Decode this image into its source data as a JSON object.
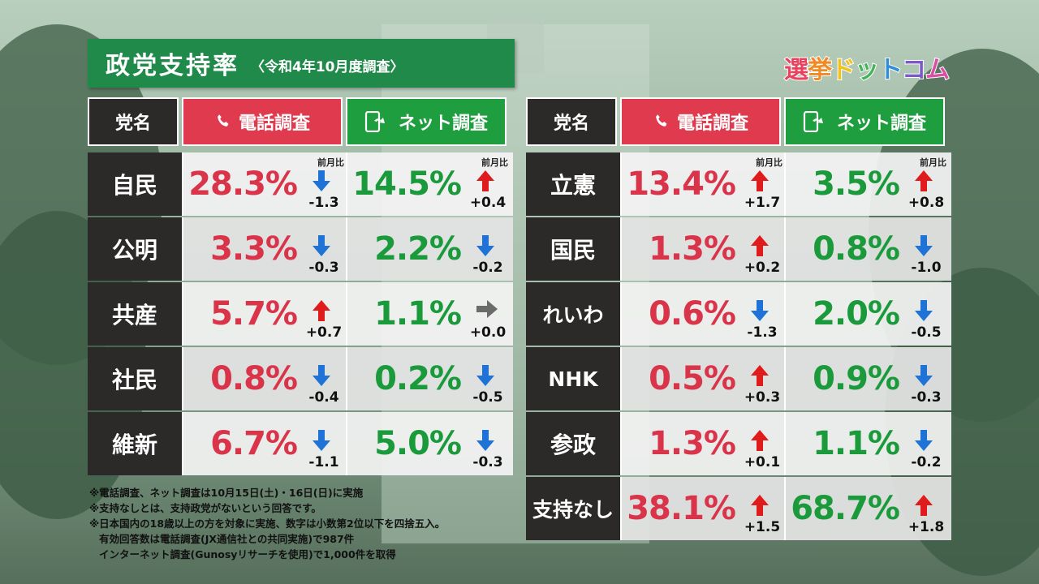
{
  "title": {
    "main": "政党支持率",
    "sub": "〈令和4年10月度調査〉"
  },
  "logo": {
    "text": "選挙ドットコム",
    "colors": [
      "#e9425f",
      "#f08a24",
      "#f2c11c",
      "#44b35a",
      "#2e8fd8",
      "#7b59c9",
      "#d94fa6"
    ]
  },
  "headers": {
    "party": "党名",
    "phone": "電話調査",
    "net": "ネット調査",
    "phone_icon": "phone-icon",
    "net_icon": "smartphone-icon"
  },
  "prev_label": "前月比",
  "colors": {
    "phone": "#e03a4e",
    "net": "#1f9e3f",
    "party_bg": "#2c2a29",
    "up": "#e01b1b",
    "down": "#1f72d6",
    "flat": "#6b6b6b"
  },
  "left_rows": [
    {
      "party": "自民",
      "phone": {
        "value": "28.3%",
        "dir": "down",
        "delta": "-1.3"
      },
      "net": {
        "value": "14.5%",
        "dir": "up",
        "delta": "+0.4"
      }
    },
    {
      "party": "公明",
      "phone": {
        "value": "3.3%",
        "dir": "down",
        "delta": "-0.3"
      },
      "net": {
        "value": "2.2%",
        "dir": "down",
        "delta": "-0.2"
      }
    },
    {
      "party": "共産",
      "phone": {
        "value": "5.7%",
        "dir": "up",
        "delta": "+0.7"
      },
      "net": {
        "value": "1.1%",
        "dir": "flat",
        "delta": "+0.0"
      }
    },
    {
      "party": "社民",
      "phone": {
        "value": "0.8%",
        "dir": "down",
        "delta": "-0.4"
      },
      "net": {
        "value": "0.2%",
        "dir": "down",
        "delta": "-0.5"
      }
    },
    {
      "party": "維新",
      "phone": {
        "value": "6.7%",
        "dir": "down",
        "delta": "-1.1"
      },
      "net": {
        "value": "5.0%",
        "dir": "down",
        "delta": "-0.3"
      }
    }
  ],
  "right_rows": [
    {
      "party": "立憲",
      "phone": {
        "value": "13.4%",
        "dir": "up",
        "delta": "+1.7"
      },
      "net": {
        "value": "3.5%",
        "dir": "up",
        "delta": "+0.8"
      }
    },
    {
      "party": "国民",
      "phone": {
        "value": "1.3%",
        "dir": "up",
        "delta": "+0.2"
      },
      "net": {
        "value": "0.8%",
        "dir": "down",
        "delta": "-1.0"
      }
    },
    {
      "party": "れいわ",
      "phone": {
        "value": "0.6%",
        "dir": "down",
        "delta": "-1.3"
      },
      "net": {
        "value": "2.0%",
        "dir": "down",
        "delta": "-0.5"
      }
    },
    {
      "party": "NHK",
      "phone": {
        "value": "0.5%",
        "dir": "up",
        "delta": "+0.3"
      },
      "net": {
        "value": "0.9%",
        "dir": "down",
        "delta": "-0.3"
      }
    },
    {
      "party": "参政",
      "phone": {
        "value": "1.3%",
        "dir": "up",
        "delta": "+0.1"
      },
      "net": {
        "value": "1.1%",
        "dir": "down",
        "delta": "-0.2"
      }
    },
    {
      "party": "支持なし",
      "phone": {
        "value": "38.1%",
        "dir": "up",
        "delta": "+1.5"
      },
      "net": {
        "value": "68.7%",
        "dir": "up",
        "delta": "+1.8"
      }
    }
  ],
  "notes": [
    "※電話調査、ネット調査は10月15日(土)・16日(日)に実施",
    "※支持なしとは、支持政党がないという回答です。",
    "※日本国内の18歳以上の方を対象に実施、数字は小数第2位以下を四捨五入。",
    "有効回答数は電話調査(JX通信社との共同実施)で987件",
    "インターネット調査(Gunosyリサーチを使用)で1,000件を取得"
  ]
}
